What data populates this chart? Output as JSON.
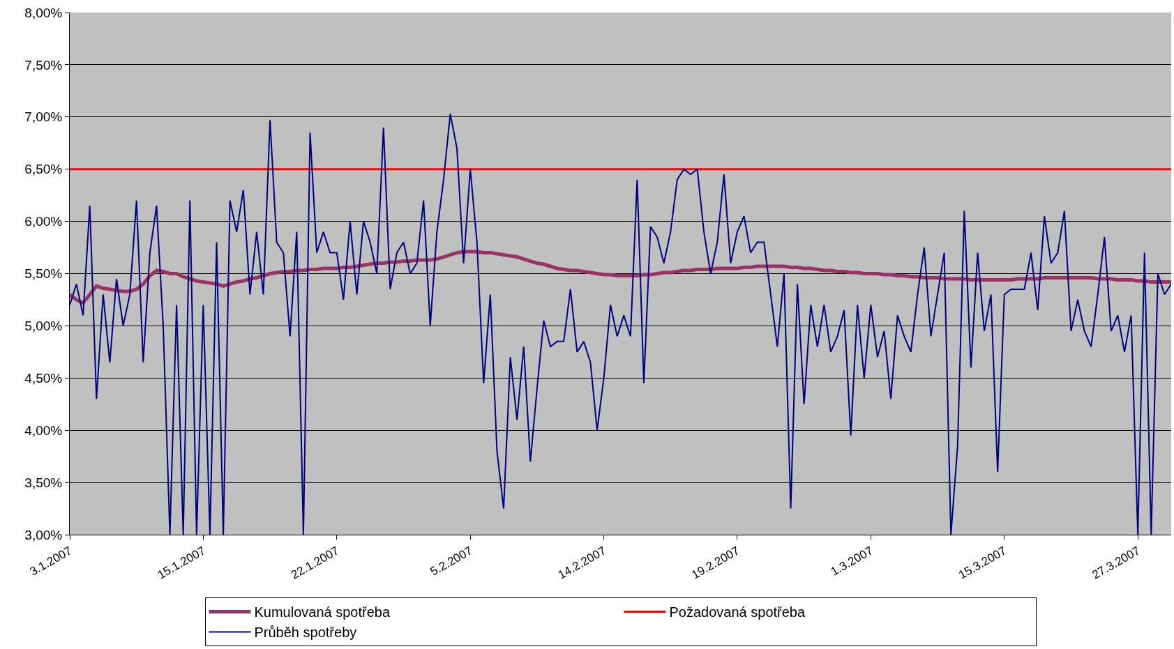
{
  "chart_data": {
    "type": "line",
    "categories": [
      "3.1.2007",
      null,
      null,
      null,
      null,
      null,
      null,
      null,
      null,
      null,
      null,
      null,
      null,
      null,
      null,
      null,
      null,
      null,
      null,
      null,
      "15.1.2007",
      null,
      null,
      null,
      null,
      null,
      null,
      null,
      null,
      null,
      null,
      null,
      null,
      null,
      null,
      null,
      null,
      null,
      null,
      null,
      "22.1.2007",
      null,
      null,
      null,
      null,
      null,
      null,
      null,
      null,
      null,
      null,
      null,
      null,
      null,
      null,
      null,
      null,
      null,
      null,
      null,
      "5.2.2007",
      null,
      null,
      null,
      null,
      null,
      null,
      null,
      null,
      null,
      null,
      null,
      null,
      null,
      null,
      null,
      null,
      null,
      null,
      null,
      "14.2.2007",
      null,
      null,
      null,
      null,
      null,
      null,
      null,
      null,
      null,
      null,
      null,
      null,
      null,
      null,
      null,
      null,
      null,
      null,
      null,
      "19.2.2007",
      null,
      null,
      null,
      null,
      null,
      null,
      null,
      null,
      null,
      null,
      null,
      null,
      null,
      null,
      null,
      null,
      null,
      null,
      null,
      "1.3.2007",
      null,
      null,
      null,
      null,
      null,
      null,
      null,
      null,
      null,
      null,
      null,
      null,
      null,
      null,
      null,
      null,
      null,
      null,
      null,
      "15.3.2007",
      null,
      null,
      null,
      null,
      null,
      null,
      null,
      null,
      null,
      null,
      null,
      null,
      null,
      null,
      null,
      null,
      null,
      null,
      null,
      "27.3.2007",
      null,
      null,
      null,
      null,
      null
    ],
    "series": [
      {
        "name": "Kumulovaná spotřeba",
        "color": "#993366",
        "values": [
          5.3,
          5.25,
          5.22,
          5.3,
          5.38,
          5.36,
          5.35,
          5.34,
          5.33,
          5.33,
          5.35,
          5.4,
          5.48,
          5.53,
          5.52,
          5.5,
          5.5,
          5.47,
          5.45,
          5.43,
          5.42,
          5.41,
          5.4,
          5.38,
          5.4,
          5.42,
          5.43,
          5.45,
          5.46,
          5.48,
          5.5,
          5.51,
          5.52,
          5.52,
          5.53,
          5.53,
          5.54,
          5.54,
          5.55,
          5.55,
          5.55,
          5.56,
          5.56,
          5.57,
          5.58,
          5.59,
          5.6,
          5.6,
          5.61,
          5.61,
          5.62,
          5.62,
          5.63,
          5.63,
          5.63,
          5.64,
          5.66,
          5.68,
          5.7,
          5.71,
          5.71,
          5.71,
          5.7,
          5.7,
          5.69,
          5.68,
          5.67,
          5.66,
          5.64,
          5.62,
          5.6,
          5.59,
          5.57,
          5.55,
          5.54,
          5.53,
          5.53,
          5.52,
          5.51,
          5.5,
          5.49,
          5.49,
          5.48,
          5.48,
          5.48,
          5.48,
          5.49,
          5.49,
          5.5,
          5.51,
          5.51,
          5.52,
          5.53,
          5.53,
          5.54,
          5.54,
          5.54,
          5.55,
          5.55,
          5.55,
          5.55,
          5.56,
          5.56,
          5.57,
          5.57,
          5.57,
          5.57,
          5.57,
          5.56,
          5.56,
          5.55,
          5.55,
          5.54,
          5.53,
          5.53,
          5.52,
          5.52,
          5.51,
          5.51,
          5.5,
          5.5,
          5.5,
          5.49,
          5.49,
          5.48,
          5.48,
          5.47,
          5.47,
          5.46,
          5.46,
          5.46,
          5.45,
          5.45,
          5.45,
          5.45,
          5.44,
          5.44,
          5.44,
          5.44,
          5.44,
          5.44,
          5.44,
          5.45,
          5.45,
          5.45,
          5.45,
          5.46,
          5.46,
          5.46,
          5.46,
          5.46,
          5.46,
          5.46,
          5.46,
          5.45,
          5.45,
          5.45,
          5.44,
          5.44,
          5.44,
          5.43,
          5.43,
          5.42,
          5.42,
          5.42,
          5.42
        ]
      },
      {
        "name": "Průběh spotřeby",
        "color": "#000080",
        "values": [
          5.2,
          5.4,
          5.1,
          6.15,
          4.3,
          5.3,
          4.65,
          5.45,
          5.0,
          5.3,
          6.2,
          4.65,
          5.7,
          6.15,
          5.0,
          3.0,
          5.2,
          3.0,
          6.2,
          3.0,
          5.2,
          3.0,
          5.8,
          3.0,
          6.2,
          5.9,
          6.3,
          5.3,
          5.9,
          5.3,
          6.97,
          5.8,
          5.7,
          4.9,
          5.9,
          3.0,
          6.85,
          5.7,
          5.9,
          5.7,
          5.7,
          5.25,
          6.0,
          5.3,
          6.0,
          5.8,
          5.5,
          6.9,
          5.35,
          5.7,
          5.8,
          5.5,
          5.6,
          6.2,
          5.0,
          5.9,
          6.4,
          7.03,
          6.7,
          5.6,
          6.5,
          5.8,
          4.45,
          5.3,
          3.8,
          3.25,
          4.7,
          4.1,
          4.8,
          3.7,
          4.4,
          5.05,
          4.8,
          4.85,
          4.85,
          5.35,
          4.75,
          4.85,
          4.65,
          4.0,
          4.5,
          5.2,
          4.9,
          5.1,
          4.9,
          6.4,
          4.45,
          5.95,
          5.85,
          5.6,
          5.9,
          6.4,
          6.5,
          6.45,
          6.5,
          5.9,
          5.5,
          5.8,
          6.45,
          5.6,
          5.9,
          6.05,
          5.7,
          5.8,
          5.8,
          5.3,
          4.8,
          5.5,
          3.25,
          5.4,
          4.25,
          5.2,
          4.8,
          5.2,
          4.75,
          4.9,
          5.15,
          3.95,
          5.2,
          4.5,
          5.2,
          4.7,
          4.95,
          4.3,
          5.1,
          4.9,
          4.75,
          5.3,
          5.75,
          4.9,
          5.3,
          5.7,
          3.0,
          3.85,
          6.1,
          4.6,
          5.7,
          4.95,
          5.3,
          3.6,
          5.3,
          5.35,
          5.35,
          5.35,
          5.7,
          5.15,
          6.05,
          5.6,
          5.7,
          6.1,
          4.95,
          5.25,
          4.95,
          4.8,
          5.3,
          5.85,
          4.95,
          5.1,
          4.75,
          5.1,
          3.0,
          5.7,
          3.0,
          5.5,
          5.3,
          5.4
        ]
      }
    ],
    "ref_lines": [
      {
        "axis": "y",
        "value": 6.5,
        "label": "Požadovaná spotřeba",
        "color": "#ff0000"
      }
    ],
    "ylim": [
      3,
      8
    ],
    "yticks": [
      {
        "value": 3,
        "label": "3,00%"
      },
      {
        "value": 3.5,
        "label": "3,50%"
      },
      {
        "value": 4,
        "label": "4,00%"
      },
      {
        "value": 4.5,
        "label": "4,50%"
      },
      {
        "value": 5,
        "label": "5,00%"
      },
      {
        "value": 5.5,
        "label": "5,50%"
      },
      {
        "value": 6,
        "label": "6,00%"
      },
      {
        "value": 6.5,
        "label": "6,50%"
      },
      {
        "value": 7,
        "label": "7,00%"
      },
      {
        "value": 7.5,
        "label": "7,50%"
      },
      {
        "value": 8,
        "label": "8,00%"
      }
    ],
    "grid": "y",
    "legend": "bottom",
    "line_style": "solid",
    "marker": "none"
  }
}
